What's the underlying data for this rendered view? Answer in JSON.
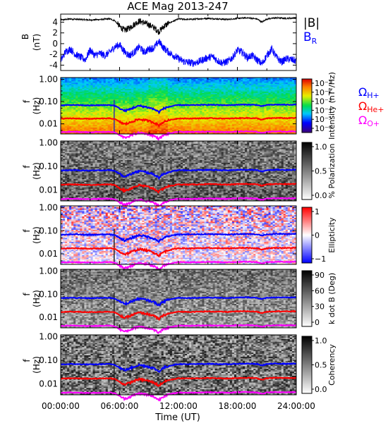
{
  "chart_data": {
    "title": "ACE Mag 2013-247",
    "xlabel": "Time (UT)",
    "x_ticks": [
      "00:00:00",
      "06:00:00",
      "12:00:00",
      "18:00:00",
      "24:00:00"
    ],
    "xlim_hours": [
      0,
      24
    ],
    "panels": [
      {
        "type": "line",
        "ylabel": "B (nT)",
        "y_ticks": [
          "4",
          "2",
          "0",
          "-2",
          "-4"
        ],
        "ylim": [
          -5,
          5.5
        ],
        "legend": [
          "|B|",
          "B_R"
        ],
        "series": [
          {
            "name": "|B|",
            "color": "#000000",
            "t": [
              0,
              1,
              2,
              3,
              4,
              5,
              5.5,
              6,
              6.5,
              7,
              7.5,
              8,
              8.5,
              9,
              9.5,
              10,
              10.5,
              11,
              11.5,
              12,
              13,
              14,
              15,
              16,
              17,
              18,
              19,
              20,
              20.5,
              21,
              22,
              23,
              24
            ],
            "values": [
              4.4,
              4.6,
              4.5,
              4.4,
              4.5,
              4.6,
              4.3,
              3.2,
              2.5,
              2.9,
              3.6,
              4.2,
              3.9,
              3.5,
              3.0,
              2.2,
              3.2,
              3.8,
              4.2,
              4.6,
              4.5,
              4.6,
              4.7,
              4.6,
              4.5,
              4.7,
              4.8,
              4.6,
              4.0,
              4.6,
              4.8,
              4.7,
              4.8
            ]
          },
          {
            "name": "B_R",
            "color": "#0000ff",
            "t": [
              0,
              0.5,
              1,
              1.5,
              2,
              2.5,
              3,
              3.5,
              4,
              4.5,
              5,
              5.5,
              6,
              6.5,
              7,
              7.5,
              8,
              8.5,
              9,
              9.5,
              10,
              10.5,
              11,
              11.5,
              12,
              12.5,
              13,
              13.5,
              14,
              14.5,
              15,
              15.5,
              16,
              16.5,
              17,
              17.5,
              18,
              18.5,
              19,
              19.5,
              20,
              20.5,
              21,
              21.5,
              22,
              22.5,
              23,
              23.5,
              24
            ],
            "values": [
              -3.2,
              -1.5,
              -1.0,
              -2.0,
              -2.5,
              -3.0,
              -1.2,
              -2.2,
              -1.8,
              -2.2,
              -1.6,
              -0.6,
              -0.2,
              -1.5,
              -2.2,
              -1.6,
              -0.6,
              -1.6,
              -1.0,
              -0.8,
              0.4,
              -0.8,
              -1.6,
              -2.2,
              -2.8,
              -3.3,
              -3.5,
              -3.6,
              -3.4,
              -3.0,
              -2.6,
              -2.4,
              -3.2,
              -3.6,
              -3.3,
              -2.6,
              -1.2,
              -1.6,
              -2.6,
              -2.2,
              -3.0,
              -3.8,
              -2.2,
              -1.0,
              -2.6,
              -3.4,
              -2.8,
              -3.0,
              -3.2
            ]
          }
        ]
      },
      {
        "type": "heatmap",
        "ylabel": "f (Hz)",
        "y_ticks": [
          "1.00",
          "0.10",
          "0.01"
        ],
        "yscale": "log",
        "ylim": [
          0.0035,
          1.2
        ],
        "colorbar_label": "Intensity (nT²/Hz)",
        "colorbar_ticks": [
          "10⁻¹",
          "10⁻²",
          "10⁻³",
          "10⁻⁴",
          "10⁻⁵",
          "10⁻⁶"
        ],
        "colormap": "rainbow"
      },
      {
        "type": "heatmap",
        "ylabel": "f (Hz)",
        "y_ticks": [
          "1.00",
          "0.10",
          "0.01"
        ],
        "yscale": "log",
        "colorbar_label": "% Polarization",
        "colorbar_ticks": [
          "1.0",
          "0.5",
          "0.0"
        ],
        "colormap": "gray"
      },
      {
        "type": "heatmap",
        "ylabel": "f (Hz)",
        "y_ticks": [
          "1.00",
          "0.10",
          "0.01"
        ],
        "yscale": "log",
        "colorbar_label": "Ellipticity",
        "colorbar_ticks": [
          "1",
          "0",
          "−1"
        ],
        "colormap": "blue-white-red"
      },
      {
        "type": "heatmap",
        "ylabel": "f (Hz)",
        "y_ticks": [
          "1.00",
          "0.10",
          "0.01"
        ],
        "yscale": "log",
        "colorbar_label": "k dot B (Deg)",
        "colorbar_ticks": [
          "90",
          "60",
          "30",
          "0"
        ],
        "colormap": "gray"
      },
      {
        "type": "heatmap",
        "ylabel": "f (Hz)",
        "y_ticks": [
          "1.00",
          "0.10",
          "0.01"
        ],
        "yscale": "log",
        "colorbar_label": "Coherency",
        "colorbar_ticks": [
          "1.0",
          "0.5",
          "0.0"
        ],
        "colormap": "gray"
      }
    ],
    "gyro_lines": {
      "legend": [
        "Ω_H+",
        "Ω_He+",
        "Ω_O+"
      ],
      "colors": [
        "#0000ff",
        "#ff0000",
        "#ff00ff"
      ],
      "t": [
        0,
        1,
        2,
        3,
        4,
        5,
        5.5,
        6,
        6.5,
        7,
        7.5,
        8,
        8.5,
        9,
        9.5,
        10,
        10.5,
        11,
        11.5,
        12,
        13,
        14,
        15,
        16,
        17,
        18,
        19,
        20,
        20.5,
        21,
        22,
        23,
        24
      ],
      "B": [
        4.4,
        4.6,
        4.5,
        4.4,
        4.5,
        4.6,
        4.3,
        3.2,
        2.5,
        2.9,
        3.6,
        4.2,
        3.9,
        3.5,
        3.0,
        2.2,
        3.2,
        3.8,
        4.2,
        4.6,
        4.5,
        4.6,
        4.7,
        4.6,
        4.5,
        4.7,
        4.8,
        4.6,
        4.0,
        4.6,
        4.8,
        4.7,
        4.8
      ]
    }
  }
}
